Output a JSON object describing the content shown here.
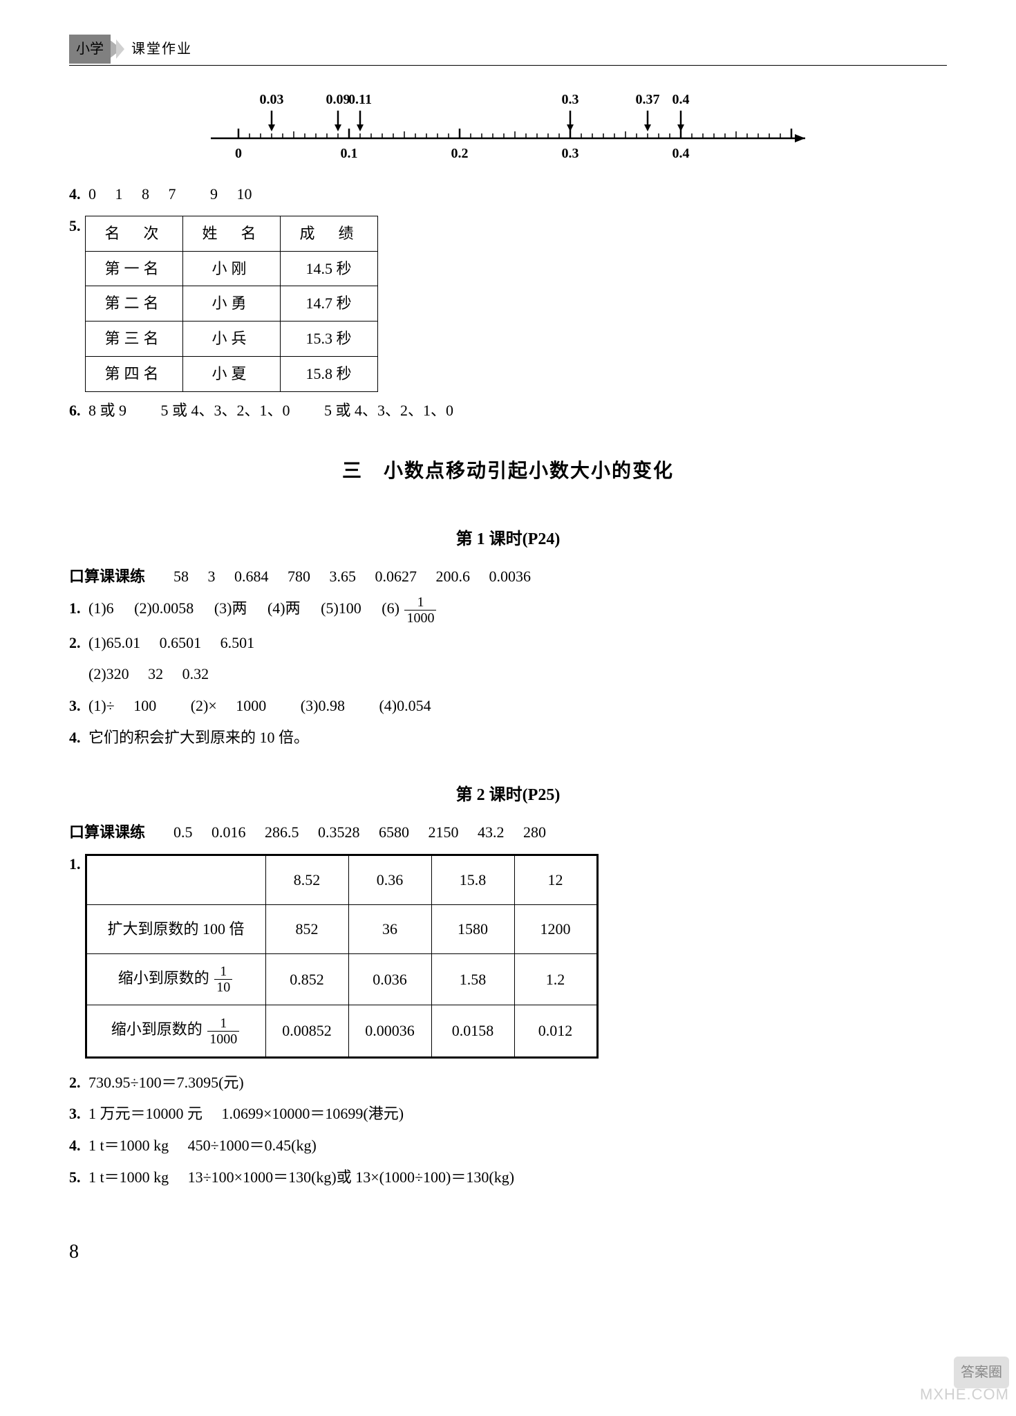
{
  "header": {
    "left": "小学",
    "right": "课堂作业"
  },
  "numberline": {
    "top_labels": [
      {
        "x": 0.03,
        "text": "0.03"
      },
      {
        "x": 0.09,
        "text": "0.09"
      },
      {
        "x": 0.11,
        "text": "0.11"
      },
      {
        "x": 0.3,
        "text": "0.3"
      },
      {
        "x": 0.37,
        "text": "0.37"
      },
      {
        "x": 0.4,
        "text": "0.4"
      }
    ],
    "bottom_labels": [
      "0",
      "0.1",
      "0.2",
      "0.3",
      "0.4"
    ],
    "axis_color": "#000000",
    "bg": "#ffffff"
  },
  "q4": {
    "label": "4.",
    "vals": "0  1  8  7   9  10"
  },
  "q5": {
    "label": "5.",
    "table": {
      "headers": [
        "名　次",
        "姓　名",
        "成　绩"
      ],
      "rows": [
        [
          "第一名",
          "小刚",
          "14.5 秒"
        ],
        [
          "第二名",
          "小勇",
          "14.7 秒"
        ],
        [
          "第三名",
          "小兵",
          "15.3 秒"
        ],
        [
          "第四名",
          "小夏",
          "15.8 秒"
        ]
      ]
    }
  },
  "q6": {
    "label": "6.",
    "text": "8 或 9   5 或 4、3、2、1、0   5 或 4、3、2、1、0"
  },
  "section": "三　小数点移动引起小数大小的变化",
  "lesson1": {
    "title": "第 1 课时(P24)",
    "kousuan_label": "口算课课练",
    "kousuan": "58  3  0.684  780  3.65  0.0627  200.6  0.0036",
    "q1": {
      "label": "1.",
      "parts": [
        "(1)6",
        "(2)0.0058",
        "(3)两",
        "(4)两",
        "(5)100",
        "(6)"
      ],
      "frac": {
        "n": "1",
        "d": "1000"
      }
    },
    "q2": {
      "label": "2.",
      "line1": "(1)65.01  0.6501  6.501",
      "line2": "(2)320  32  0.32"
    },
    "q3": {
      "label": "3.",
      "text": "(1)÷  100   (2)×  1000   (3)0.98   (4)0.054"
    },
    "q4": {
      "label": "4.",
      "text": "它们的积会扩大到原来的 10 倍。"
    }
  },
  "lesson2": {
    "title": "第 2 课时(P25)",
    "kousuan_label": "口算课课练",
    "kousuan": "0.5  0.016  286.5  0.3528  6580  2150  43.2  280",
    "q1": {
      "label": "1.",
      "row_labels": {
        "r1": "",
        "r2": "扩大到原数的 100 倍",
        "r3_pre": "缩小到原数的",
        "r3_frac": {
          "n": "1",
          "d": "10"
        },
        "r4_pre": "缩小到原数的",
        "r4_frac": {
          "n": "1",
          "d": "1000"
        }
      },
      "cols": [
        "8.52",
        "0.36",
        "15.8",
        "12"
      ],
      "r2": [
        "852",
        "36",
        "1580",
        "1200"
      ],
      "r3": [
        "0.852",
        "0.036",
        "1.58",
        "1.2"
      ],
      "r4": [
        "0.00852",
        "0.00036",
        "0.0158",
        "0.012"
      ]
    },
    "q2": {
      "label": "2.",
      "text": "730.95÷100＝7.3095(元)"
    },
    "q3": {
      "label": "3.",
      "text": "1 万元＝10000 元  1.0699×10000＝10699(港元)"
    },
    "q4": {
      "label": "4.",
      "text": "1 t＝1000 kg  450÷1000＝0.45(kg)"
    },
    "q5": {
      "label": "5.",
      "text": "1 t＝1000 kg  13÷100×1000＝130(kg)或 13×(1000÷100)＝130(kg)"
    }
  },
  "page_num": "8",
  "watermark": {
    "badge": "答案圈",
    "url": "MXHE.COM"
  }
}
